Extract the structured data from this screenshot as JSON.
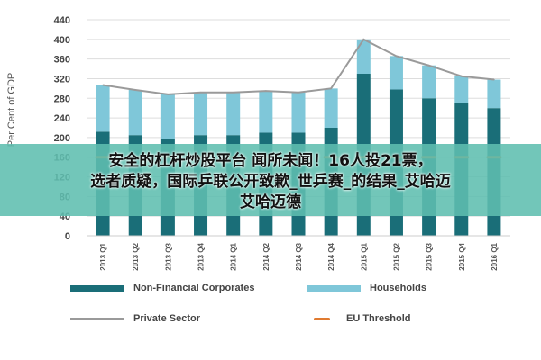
{
  "chart_data": {
    "type": "bar",
    "ylabel": "Per Cent of GDP",
    "ylim": [
      0,
      440
    ],
    "yticks": [
      0,
      40,
      80,
      120,
      160,
      200,
      240,
      280,
      320,
      360,
      400,
      440
    ],
    "categories": [
      "2013 Q1",
      "2013 Q2",
      "2013 Q3",
      "2013 Q4",
      "2014 Q1",
      "2014 Q2",
      "2014 Q3",
      "2014 Q4",
      "2015 Q1",
      "2015 Q2",
      "2015 Q3",
      "2015 Q4",
      "2016 Q1"
    ],
    "series": [
      {
        "name": "Non-Financial Corporates",
        "kind": "stacked-bar",
        "color": "#1a6e78",
        "values": [
          212,
          205,
          198,
          205,
          205,
          210,
          210,
          220,
          330,
          298,
          280,
          270,
          260
        ]
      },
      {
        "name": "Households",
        "kind": "stacked-bar",
        "color": "#7fc7d9",
        "values": [
          95,
          92,
          90,
          87,
          87,
          85,
          82,
          80,
          70,
          68,
          67,
          55,
          58
        ]
      },
      {
        "name": "Private Sector",
        "kind": "line",
        "color": "#9a9a9a",
        "values": [
          307,
          297,
          288,
          292,
          292,
          295,
          292,
          300,
          400,
          366,
          347,
          325,
          318
        ]
      },
      {
        "name": "EU Threshold",
        "kind": "dash",
        "color": "#e07a30",
        "values": [
          160,
          160,
          160,
          160,
          160,
          160,
          160,
          160,
          160,
          160,
          160,
          160,
          160
        ]
      }
    ],
    "legend_position": "bottom",
    "grid": "horizontal"
  },
  "overlay": {
    "line1": "安全的杠杆炒股平台 闻所未闻！16人投21票，",
    "line2": "选者质疑，国际乒联公开致歉_世乒赛_的结果_艾哈迈",
    "line3": "艾哈迈德"
  },
  "colors": {
    "background": "#ffffff",
    "grid": "#dddddd",
    "banner": "#5fbeaf"
  }
}
